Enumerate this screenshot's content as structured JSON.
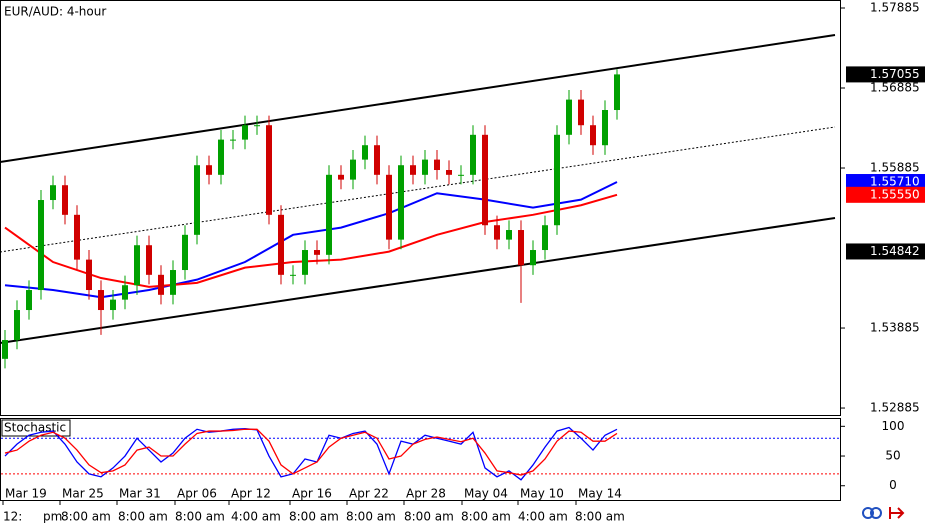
{
  "chart_data": [
    {
      "type": "candlestick",
      "title": "EUR/AUD: 4-hour",
      "open": [
        1.535,
        1.53735,
        1.5411,
        1.5436,
        1.55485,
        1.5567,
        1.553,
        1.5474,
        1.5436,
        1.5411,
        1.5424,
        1.5442,
        1.5492,
        1.5455,
        1.543,
        1.5461,
        1.5505,
        1.5592,
        1.558,
        1.5624,
        1.5624,
        1.5642,
        1.5642,
        1.553,
        1.5455,
        1.5455,
        1.5486,
        1.548,
        1.558,
        1.5574,
        1.5599,
        1.5617,
        1.558,
        1.5499,
        1.5592,
        1.558,
        1.5599,
        1.5586,
        1.558,
        1.558,
        1.563,
        1.5517,
        1.5499,
        1.5511,
        1.5467,
        1.5486,
        1.5517,
        1.563,
        1.5674,
        1.5642,
        1.5617,
        1.5661
      ],
      "high": [
        1.5386,
        1.5423,
        1.5448,
        1.5561,
        1.5579,
        1.5579,
        1.5542,
        1.5486,
        1.5448,
        1.5436,
        1.5454,
        1.5504,
        1.5504,
        1.5467,
        1.5473,
        1.5517,
        1.5604,
        1.5604,
        1.5636,
        1.5636,
        1.5654,
        1.5654,
        1.5654,
        1.5542,
        1.5467,
        1.5498,
        1.5498,
        1.5592,
        1.5592,
        1.5611,
        1.5629,
        1.5629,
        1.5592,
        1.5604,
        1.5604,
        1.5611,
        1.5611,
        1.5598,
        1.5592,
        1.5642,
        1.5642,
        1.5529,
        1.5523,
        1.5523,
        1.5498,
        1.5529,
        1.5642,
        1.5686,
        1.5686,
        1.5654,
        1.5673,
        1.5712
      ],
      "low": [
        1.5338,
        1.5362,
        1.5399,
        1.5424,
        1.5537,
        1.5518,
        1.5462,
        1.5424,
        1.538,
        1.5399,
        1.5412,
        1.543,
        1.5443,
        1.5418,
        1.5418,
        1.5449,
        1.5493,
        1.5568,
        1.5568,
        1.5612,
        1.5612,
        1.563,
        1.5518,
        1.5443,
        1.5443,
        1.5443,
        1.5468,
        1.5468,
        1.5562,
        1.5562,
        1.5587,
        1.5568,
        1.5487,
        1.5487,
        1.5568,
        1.5568,
        1.5574,
        1.5568,
        1.5568,
        1.5568,
        1.5505,
        1.5487,
        1.5487,
        1.542,
        1.5455,
        1.5474,
        1.5505,
        1.5618,
        1.563,
        1.5605,
        1.5605,
        1.5649
      ],
      "close": [
        1.53735,
        1.5411,
        1.5436,
        1.55485,
        1.5567,
        1.553,
        1.5474,
        1.5436,
        1.5411,
        1.5424,
        1.5442,
        1.5492,
        1.5455,
        1.543,
        1.5461,
        1.5505,
        1.5592,
        1.558,
        1.5624,
        1.5624,
        1.5642,
        1.5642,
        1.553,
        1.5455,
        1.5455,
        1.5486,
        1.548,
        1.558,
        1.5574,
        1.5599,
        1.5617,
        1.558,
        1.5499,
        1.5592,
        1.558,
        1.5599,
        1.5586,
        1.558,
        1.558,
        1.563,
        1.5517,
        1.5499,
        1.5511,
        1.5467,
        1.5486,
        1.5517,
        1.563,
        1.5674,
        1.5642,
        1.5617,
        1.5661,
        1.57055
      ],
      "up_color": "#00a000",
      "down_color": "#d00000",
      "overlays": [
        {
          "color": "#0000ff",
          "x": [
            0,
            4,
            8,
            12,
            16,
            20,
            24,
            28,
            32,
            36,
            40,
            44,
            48,
            51
          ],
          "values": [
            1.5442,
            1.5436,
            1.5427,
            1.5436,
            1.5449,
            1.5471,
            1.5505,
            1.5514,
            1.5532,
            1.5557,
            1.5549,
            1.5539,
            1.5549,
            1.5571
          ]
        },
        {
          "color": "#ff0000",
          "x": [
            0,
            4,
            8,
            12,
            16,
            20,
            24,
            28,
            32,
            36,
            40,
            44,
            48,
            51
          ],
          "values": [
            1.5514,
            1.5471,
            1.5451,
            1.544,
            1.5445,
            1.5464,
            1.5471,
            1.5474,
            1.5484,
            1.5505,
            1.5521,
            1.553,
            1.5542,
            1.5555
          ]
        }
      ],
      "ylim": [
        1.52798,
        1.57985
      ],
      "yticks": [
        1.57885,
        1.56885,
        1.55885,
        1.53885,
        1.52885
      ],
      "price_markers": [
        {
          "value": 1.57055,
          "label": "1.57055",
          "color": "#000000"
        },
        {
          "value": 1.5571,
          "label": "1.55710",
          "color": "#0000ff"
        },
        {
          "value": 1.5555,
          "label": "1.55550",
          "color": "#ff0000"
        },
        {
          "value": 1.54842,
          "label": "1.54842",
          "color": "#000000"
        }
      ],
      "time_labels": [
        "Mar 19",
        "Mar 25",
        "Mar 31",
        "Apr 06",
        "Apr 12",
        "Apr 16",
        "Apr 22",
        "Apr 28",
        "May 04",
        "May 10",
        "May 14"
      ],
      "time_labels_2": [
        "12:",
        "pm",
        "8:00 am",
        "8:00 am",
        "8:00 am",
        "4:00 am",
        "8:00 am",
        "8:00 am",
        "8:00 am",
        "8:00 am",
        "4:00 am",
        "8:00 am"
      ]
    },
    {
      "type": "line",
      "title": "Stochastic",
      "series": [
        {
          "color": "#0000ff",
          "values": [
            50,
            70,
            85,
            90,
            92,
            70,
            40,
            20,
            15,
            30,
            50,
            80,
            60,
            40,
            55,
            80,
            95,
            90,
            92,
            95,
            96,
            94,
            50,
            15,
            20,
            45,
            40,
            85,
            80,
            88,
            92,
            70,
            20,
            75,
            70,
            85,
            80,
            75,
            70,
            90,
            30,
            15,
            25,
            10,
            35,
            65,
            92,
            98,
            80,
            60,
            85,
            95
          ]
        },
        {
          "color": "#ff0000",
          "values": [
            55,
            60,
            75,
            85,
            90,
            80,
            60,
            35,
            22,
            25,
            35,
            60,
            65,
            50,
            50,
            70,
            88,
            92,
            92,
            93,
            95,
            95,
            75,
            35,
            20,
            30,
            40,
            65,
            80,
            85,
            90,
            80,
            45,
            50,
            70,
            78,
            82,
            78,
            74,
            80,
            55,
            25,
            22,
            18,
            25,
            45,
            75,
            92,
            90,
            75,
            75,
            88
          ]
        }
      ],
      "ylim": [
        -24,
        114
      ],
      "yticks": [
        0,
        50,
        100
      ],
      "levels": [
        {
          "value": 80,
          "color": "#0000ff"
        },
        {
          "value": 20,
          "color": "#ff0000"
        }
      ]
    }
  ]
}
